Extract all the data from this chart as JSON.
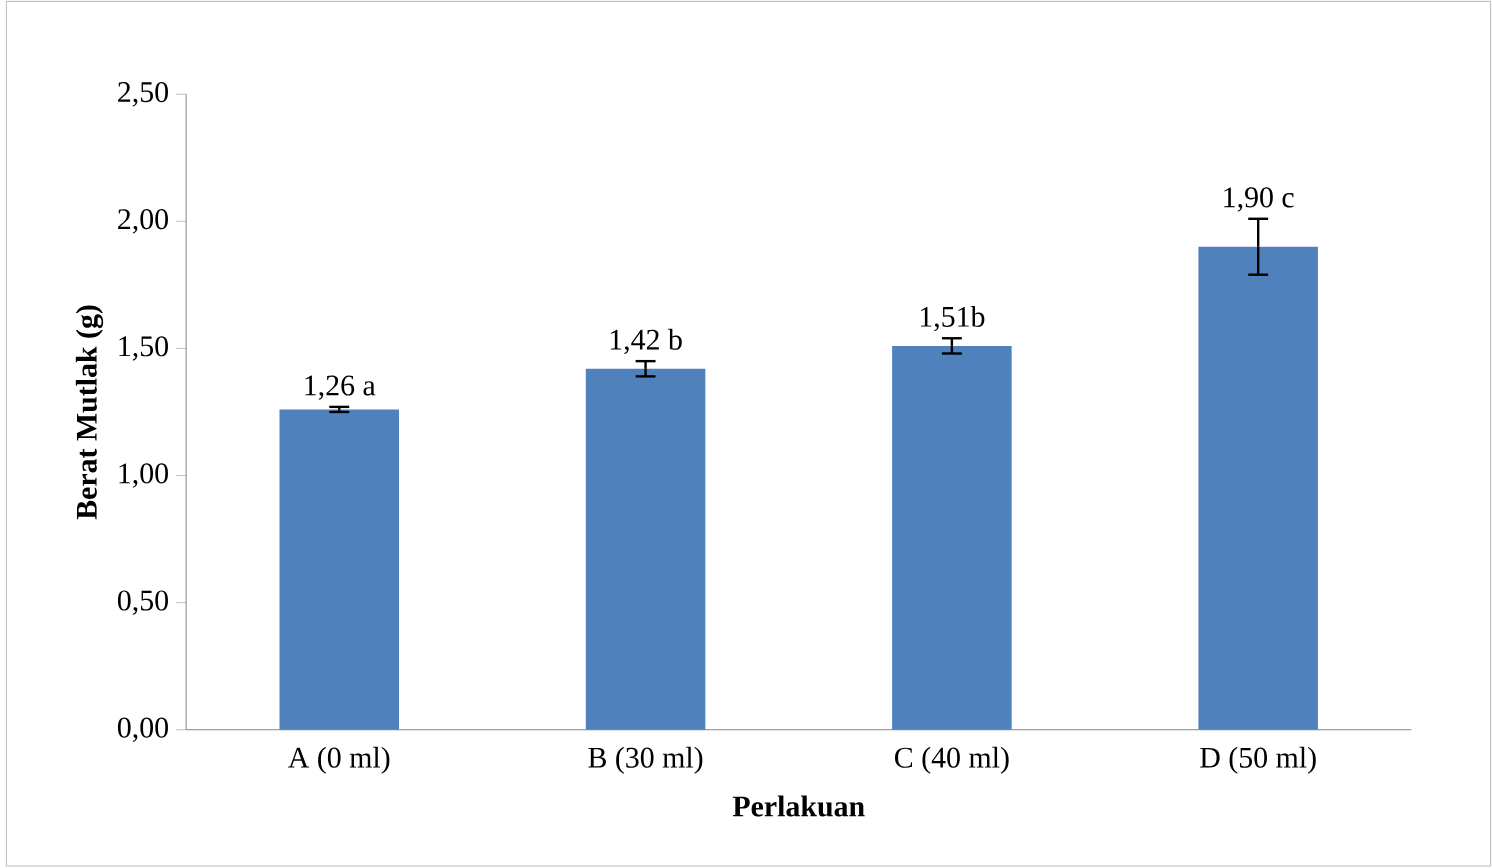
{
  "chart_data": {
    "type": "bar",
    "xlabel": "Perlakuan",
    "ylabel": "Berat Mutlak (g)",
    "categories": [
      "A (0 ml)",
      "B (30 ml)",
      "C (40 ml)",
      "D (50 ml)"
    ],
    "values": [
      1.26,
      1.42,
      1.51,
      1.9
    ],
    "errors": [
      0.01,
      0.03,
      0.03,
      0.11
    ],
    "value_labels": [
      "1,26 a",
      "1,42 b",
      "1,51b",
      "1,90 c"
    ],
    "color": "#4f81bd",
    "ylim": [
      0,
      2.5
    ],
    "yticks": [
      {
        "value": 0,
        "label": "0,00"
      },
      {
        "value": 0.5,
        "label": "0,50"
      },
      {
        "value": 1,
        "label": "1,00"
      },
      {
        "value": 1.5,
        "label": "1,50"
      },
      {
        "value": 2,
        "label": "2,00"
      },
      {
        "value": 2.5,
        "label": "2,50"
      }
    ],
    "grid": false
  }
}
